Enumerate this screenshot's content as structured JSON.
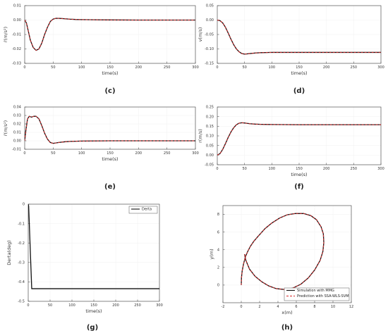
{
  "colors": {
    "simulation": "#111111",
    "prediction": "#d62728",
    "axis": "#555555",
    "grid": "#cccccc"
  },
  "chart_data": [
    {
      "id": "c",
      "panel_label": "(c)",
      "type": "line",
      "xlabel": "time(s)",
      "ylabel": "ṙ(m/s²)",
      "xlim": [
        0,
        300
      ],
      "ylim": [
        -0.03,
        0.01
      ],
      "xticks": [
        0,
        50,
        100,
        150,
        200,
        250,
        300
      ],
      "yticks": [
        -0.03,
        -0.02,
        -0.01,
        0.0,
        0.01
      ],
      "ytick_labels": [
        "-0.03",
        "-0.02",
        "-0.01",
        "0.00",
        "0.01"
      ],
      "series": [
        {
          "style": "simulation",
          "x": [
            0,
            3,
            6,
            10,
            15,
            20,
            25,
            30,
            35,
            40,
            45,
            50,
            55,
            60,
            70,
            80,
            90,
            100,
            150,
            200,
            250,
            300
          ],
          "y": [
            0,
            -0.002,
            -0.007,
            -0.014,
            -0.019,
            -0.021,
            -0.02,
            -0.016,
            -0.01,
            -0.005,
            -0.001,
            0.0007,
            0.0012,
            0.0012,
            0.0009,
            0.0006,
            0.0004,
            0.0003,
            0.0001,
            0,
            0,
            0
          ]
        },
        {
          "style": "prediction",
          "x": [
            0,
            3,
            6,
            10,
            15,
            20,
            25,
            30,
            35,
            40,
            45,
            50,
            55,
            60,
            70,
            80,
            90,
            100,
            150,
            200,
            250,
            300
          ],
          "y": [
            0,
            -0.002,
            -0.007,
            -0.014,
            -0.019,
            -0.021,
            -0.02,
            -0.016,
            -0.01,
            -0.005,
            -0.001,
            0.0007,
            0.0012,
            0.0012,
            0.0009,
            0.0006,
            0.0004,
            0.0003,
            0.0001,
            0,
            0,
            0
          ]
        }
      ]
    },
    {
      "id": "d",
      "panel_label": "(d)",
      "type": "line",
      "xlabel": "time(s)",
      "ylabel": "v(m/s)",
      "xlim": [
        0,
        300
      ],
      "ylim": [
        -0.15,
        0.05
      ],
      "xticks": [
        0,
        50,
        100,
        150,
        200,
        250,
        300
      ],
      "yticks": [
        -0.15,
        -0.1,
        -0.05,
        0.0,
        0.05
      ],
      "ytick_labels": [
        "-0.15",
        "-0.10",
        "-0.05",
        "0.00",
        "0.05"
      ],
      "series": [
        {
          "style": "simulation",
          "x": [
            0,
            5,
            10,
            15,
            20,
            25,
            30,
            35,
            40,
            45,
            50,
            55,
            60,
            70,
            80,
            100,
            150,
            200,
            250,
            300
          ],
          "y": [
            0,
            -0.002,
            -0.01,
            -0.025,
            -0.045,
            -0.066,
            -0.085,
            -0.1,
            -0.11,
            -0.116,
            -0.118,
            -0.117,
            -0.116,
            -0.114,
            -0.113,
            -0.112,
            -0.112,
            -0.112,
            -0.112,
            -0.112
          ]
        },
        {
          "style": "prediction",
          "x": [
            0,
            5,
            10,
            15,
            20,
            25,
            30,
            35,
            40,
            45,
            50,
            55,
            60,
            70,
            80,
            100,
            150,
            200,
            250,
            300
          ],
          "y": [
            0,
            -0.002,
            -0.01,
            -0.025,
            -0.045,
            -0.066,
            -0.085,
            -0.1,
            -0.11,
            -0.116,
            -0.118,
            -0.117,
            -0.116,
            -0.114,
            -0.113,
            -0.112,
            -0.112,
            -0.112,
            -0.112,
            -0.112
          ]
        }
      ]
    },
    {
      "id": "e",
      "panel_label": "(e)",
      "type": "line",
      "xlabel": "time(s)",
      "ylabel": "ṙ(m/s²)",
      "xlim": [
        0,
        300
      ],
      "ylim": [
        -0.01,
        0.04
      ],
      "xticks": [
        0,
        50,
        100,
        150,
        200,
        250,
        300
      ],
      "yticks": [
        -0.01,
        0.0,
        0.01,
        0.02,
        0.03,
        0.04
      ],
      "ytick_labels": [
        "-0.01",
        "0.00",
        "0.01",
        "0.02",
        "0.03",
        "0.04"
      ],
      "series": [
        {
          "style": "simulation",
          "x": [
            0,
            2,
            5,
            8,
            12,
            16,
            20,
            25,
            30,
            35,
            40,
            45,
            50,
            55,
            60,
            70,
            80,
            100,
            150,
            200,
            250,
            300
          ],
          "y": [
            0,
            0.012,
            0.026,
            0.029,
            0.028,
            0.029,
            0.029,
            0.026,
            0.018,
            0.009,
            0.002,
            -0.002,
            -0.003,
            -0.0025,
            -0.002,
            -0.0012,
            -0.0007,
            -0.0003,
            0,
            0,
            0,
            0
          ]
        },
        {
          "style": "prediction",
          "x": [
            0,
            2,
            5,
            8,
            12,
            16,
            20,
            25,
            30,
            35,
            40,
            45,
            50,
            55,
            60,
            70,
            80,
            100,
            150,
            200,
            250,
            300
          ],
          "y": [
            0,
            0.012,
            0.026,
            0.029,
            0.028,
            0.029,
            0.029,
            0.026,
            0.018,
            0.009,
            0.002,
            -0.002,
            -0.003,
            -0.0025,
            -0.002,
            -0.0012,
            -0.0007,
            -0.0003,
            0,
            0,
            0,
            0
          ]
        }
      ]
    },
    {
      "id": "f",
      "panel_label": "(f)",
      "type": "line",
      "xlabel": "time(s)",
      "ylabel": "r(m/s)",
      "xlim": [
        0,
        300
      ],
      "ylim": [
        -0.05,
        0.25
      ],
      "xticks": [
        0,
        50,
        100,
        150,
        200,
        250,
        300
      ],
      "yticks": [
        -0.05,
        0.0,
        0.05,
        0.1,
        0.15,
        0.2,
        0.25
      ],
      "ytick_labels": [
        "-0.05",
        "0.00",
        "0.05",
        "0.10",
        "0.15",
        "0.20",
        "0.25"
      ],
      "series": [
        {
          "style": "simulation",
          "x": [
            0,
            5,
            10,
            15,
            20,
            25,
            30,
            35,
            40,
            45,
            50,
            55,
            60,
            70,
            80,
            100,
            150,
            200,
            250,
            300
          ],
          "y": [
            0,
            0.008,
            0.03,
            0.06,
            0.092,
            0.12,
            0.142,
            0.158,
            0.166,
            0.168,
            0.167,
            0.165,
            0.163,
            0.161,
            0.16,
            0.159,
            0.158,
            0.158,
            0.158,
            0.158
          ]
        },
        {
          "style": "prediction",
          "x": [
            0,
            5,
            10,
            15,
            20,
            25,
            30,
            35,
            40,
            45,
            50,
            55,
            60,
            70,
            80,
            100,
            150,
            200,
            250,
            300
          ],
          "y": [
            0,
            0.008,
            0.03,
            0.06,
            0.092,
            0.12,
            0.142,
            0.158,
            0.166,
            0.168,
            0.167,
            0.165,
            0.163,
            0.161,
            0.16,
            0.159,
            0.158,
            0.158,
            0.158,
            0.158
          ]
        }
      ]
    },
    {
      "id": "g",
      "panel_label": "(g)",
      "type": "line",
      "xlabel": "time(s)",
      "ylabel": "Derta(deg)",
      "xlim": [
        0,
        300
      ],
      "ylim": [
        -0.5,
        0
      ],
      "xticks": [
        0,
        50,
        100,
        150,
        200,
        250,
        300
      ],
      "yticks": [
        -0.5,
        -0.4,
        -0.3,
        -0.2,
        -0.1,
        0
      ],
      "ytick_labels": [
        "-0.5",
        "-0.4",
        "-0.3",
        "-0.2",
        "-0.1",
        "0"
      ],
      "legend": {
        "position": "top-right",
        "entries": [
          {
            "label": "Derta",
            "style": "simulation"
          }
        ]
      },
      "series": [
        {
          "style": "simulation",
          "name": "Derta",
          "x": [
            0,
            1,
            8,
            300
          ],
          "y": [
            0,
            -0.01,
            -0.435,
            -0.435
          ]
        }
      ]
    },
    {
      "id": "h",
      "panel_label": "(h)",
      "type": "line",
      "xlabel": "x(m)",
      "ylabel": "y(m)",
      "xlim": [
        -2,
        12
      ],
      "ylim": [
        -2,
        9
      ],
      "xticks": [
        -2,
        0,
        2,
        4,
        6,
        8,
        10,
        12
      ],
      "yticks": [
        0,
        2,
        4,
        6,
        8
      ],
      "ytick_labels": [
        "0",
        "2",
        "4",
        "6",
        "8"
      ],
      "legend": {
        "position": "bottom-right",
        "entries": [
          {
            "label": "Simulation with MMG",
            "style": "simulation"
          },
          {
            "label": "Prediction with SSA-WLS-SVM",
            "style": "prediction"
          }
        ]
      },
      "series": [
        {
          "style": "simulation",
          "name": "Simulation with MMG",
          "x": [
            0,
            0.02,
            0.1,
            0.25,
            0.45,
            0.7,
            1.0,
            1.4,
            1.9,
            2.6,
            3.3,
            4.2,
            5.0,
            5.9,
            6.8,
            7.6,
            8.2,
            8.7,
            8.95,
            9.0,
            8.9,
            8.6,
            8.0,
            7.3,
            6.5,
            5.6,
            4.7,
            3.8,
            3.0,
            2.2,
            1.5,
            0.9,
            0.5,
            0.35
          ],
          "y": [
            0,
            0.8,
            1.6,
            2.4,
            3.2,
            3.8,
            4.4,
            5.0,
            5.6,
            6.4,
            7.0,
            7.6,
            7.95,
            8.1,
            8.1,
            7.85,
            7.4,
            6.6,
            5.8,
            4.8,
            3.8,
            2.8,
            1.7,
            0.8,
            0.1,
            -0.35,
            -0.5,
            -0.4,
            -0.1,
            0.4,
            1.0,
            1.8,
            2.8,
            3.5
          ]
        },
        {
          "style": "prediction",
          "name": "Prediction with SSA-WLS-SVM",
          "x": [
            0,
            0.02,
            0.1,
            0.25,
            0.45,
            0.7,
            1.0,
            1.4,
            1.9,
            2.6,
            3.3,
            4.2,
            5.0,
            5.9,
            6.8,
            7.6,
            8.2,
            8.7,
            8.95,
            9.0,
            8.9,
            8.6,
            8.0,
            7.3,
            6.5,
            5.6,
            4.7,
            3.8,
            3.0,
            2.2,
            1.5,
            0.9,
            0.5,
            0.35
          ],
          "y": [
            0,
            0.8,
            1.6,
            2.4,
            3.2,
            3.8,
            4.4,
            5.0,
            5.6,
            6.4,
            7.0,
            7.6,
            7.95,
            8.1,
            8.1,
            7.85,
            7.4,
            6.6,
            5.8,
            4.8,
            3.8,
            2.8,
            1.7,
            0.8,
            0.1,
            -0.35,
            -0.5,
            -0.4,
            -0.1,
            0.4,
            1.0,
            1.8,
            2.8,
            3.5
          ]
        }
      ]
    }
  ]
}
